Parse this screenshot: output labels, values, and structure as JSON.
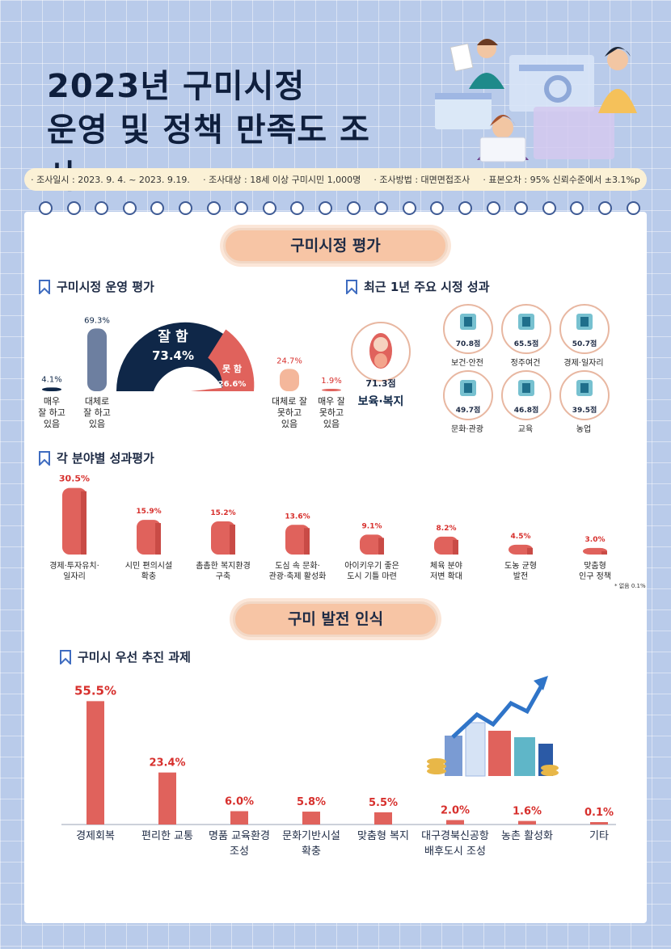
{
  "header": {
    "title_line1": "2023년 구미시정",
    "title_line2": "운영 및 정책 만족도 조사"
  },
  "survey_info": {
    "date": "· 조사일시 : 2023. 9. 4. ~ 2023. 9.19.",
    "target": "· 조사대상 : 18세 이상 구미시민 1,000명",
    "method": "· 조사방법 : 대면면접조사",
    "error": "· 표본오차 : 95% 신뢰수준에서 ±3.1%p"
  },
  "section1": {
    "pill": "구미시정 평가",
    "sub1_title": "구미시정 운영 평가",
    "sub2_title": "최근 1년 주요 시정 성과",
    "sub3_title": "각 분야별 성과평가",
    "gauge_good_label": "잘 함",
    "gauge_good_value": "73.4%",
    "gauge_bad_label": "못 함",
    "gauge_bad_value": "26.6%",
    "top_achievement_value": "71.3점",
    "top_achievement_label": "보육·복지",
    "achievements": [
      {
        "value": "70.8점",
        "label": "보건·안전",
        "icon": "hand-heart-icon"
      },
      {
        "value": "65.5점",
        "label": "정주여건",
        "icon": "building-icon"
      },
      {
        "value": "50.7점",
        "label": "경제·일자리",
        "icon": "worker-icon"
      },
      {
        "value": "49.7점",
        "label": "문화·관광",
        "icon": "map-pin-icon"
      },
      {
        "value": "46.8점",
        "label": "교육",
        "icon": "books-icon"
      },
      {
        "value": "39.5점",
        "label": "농업",
        "icon": "fruit-icon"
      }
    ],
    "field_note": "* 없음 0.1%"
  },
  "section2": {
    "pill": "구미 발전 인식",
    "sub_title": "구미시 우선 추진 과제"
  },
  "colors": {
    "navy": "#0f2748",
    "coral": "#e0625c",
    "peach": "#f4b79b",
    "slate": "#6d7fa0"
  },
  "chart_data": [
    {
      "type": "bar",
      "title": "구미시정 운영 평가",
      "categories": [
        "매우 잘 하고 있음",
        "대체로 잘 하고 있음",
        "대체로 잘 못하고 있음",
        "매우 잘 못하고 있음"
      ],
      "values": [
        4.1,
        69.3,
        24.7,
        1.9
      ],
      "value_labels": [
        "4.1%",
        "69.3%",
        "24.7%",
        "1.9%"
      ]
    },
    {
      "type": "pie",
      "categories": [
        "잘 함",
        "못 함"
      ],
      "values": [
        73.4,
        26.6
      ]
    },
    {
      "type": "bar",
      "title": "최근 1년 주요 시정 성과",
      "categories": [
        "보육·복지",
        "보건·안전",
        "정주여건",
        "경제·일자리",
        "문화·관광",
        "교육",
        "농업"
      ],
      "values": [
        71.3,
        70.8,
        65.5,
        50.7,
        49.7,
        46.8,
        39.5
      ]
    },
    {
      "type": "bar",
      "title": "각 분야별 성과평가",
      "categories": [
        "경제·투자유치·일자리",
        "시민 편의시설 확충",
        "촘촘한 복지환경 구축",
        "도심 속 문화·관광·축제 활성화",
        "아이키우기 좋은 도시 기틀 마련",
        "체육 분야 저변 확대",
        "도농 균형 발전",
        "맞춤형 인구 정책"
      ],
      "label_lines": [
        [
          "경제·투자유치·",
          "일자리"
        ],
        [
          "시민 편의시설",
          "확충"
        ],
        [
          "촘촘한 복지환경",
          "구축"
        ],
        [
          "도심 속 문화·",
          "관광·축제 활성화"
        ],
        [
          "아이키우기 좋은",
          "도시 기틀 마련"
        ],
        [
          "체육 분야",
          "저변 확대"
        ],
        [
          "도농 균형",
          "발전"
        ],
        [
          "맞춤형",
          "인구 정책"
        ]
      ],
      "values": [
        30.5,
        15.9,
        15.2,
        13.6,
        9.1,
        8.2,
        4.5,
        3.0
      ],
      "value_labels": [
        "30.5%",
        "15.9%",
        "15.2%",
        "13.6%",
        "9.1%",
        "8.2%",
        "4.5%",
        "3.0%"
      ]
    },
    {
      "type": "bar",
      "title": "구미시 우선 추진 과제",
      "categories": [
        "경제회복",
        "편리한 교통",
        "명품 교육환경 조성",
        "문화기반시설 확충",
        "맞춤형 복지",
        "대구경북신공항 배후도시 조성",
        "농촌 활성화",
        "기타"
      ],
      "label_lines": [
        [
          "경제회복"
        ],
        [
          "편리한 교통"
        ],
        [
          "명품 교육환경",
          "조성"
        ],
        [
          "문화기반시설",
          "확충"
        ],
        [
          "맞춤형 복지"
        ],
        [
          "대구경북신공항",
          "배후도시 조성"
        ],
        [
          "농촌 활성화"
        ],
        [
          "기타"
        ]
      ],
      "values": [
        55.5,
        23.4,
        6.0,
        5.8,
        5.5,
        2.0,
        1.6,
        0.1
      ],
      "value_labels": [
        "55.5%",
        "23.4%",
        "6.0%",
        "5.8%",
        "5.5%",
        "2.0%",
        "1.6%",
        "0.1%"
      ]
    }
  ]
}
